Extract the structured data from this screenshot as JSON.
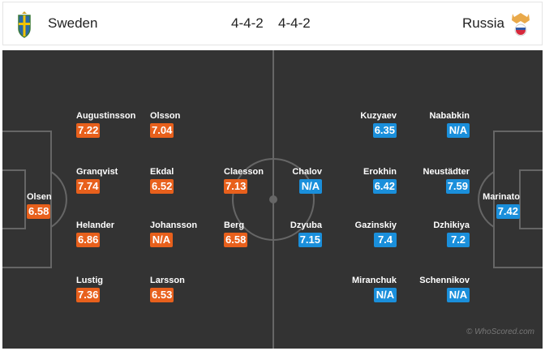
{
  "header": {
    "home_team": "Sweden",
    "away_team": "Russia",
    "home_formation": "4-4-2",
    "away_formation": "4-4-2"
  },
  "colors": {
    "home_badge": "#e8601c",
    "away_badge": "#1a8fdb",
    "pitch": "#333333"
  },
  "home_players": [
    {
      "name": "Olsen",
      "rating": "6.58"
    },
    {
      "name": "Augustinsson",
      "rating": "7.22"
    },
    {
      "name": "Granqvist",
      "rating": "7.74"
    },
    {
      "name": "Helander",
      "rating": "6.86"
    },
    {
      "name": "Lustig",
      "rating": "7.36"
    },
    {
      "name": "Olsson",
      "rating": "7.04"
    },
    {
      "name": "Ekdal",
      "rating": "6.52"
    },
    {
      "name": "Johansson",
      "rating": "N/A"
    },
    {
      "name": "Larsson",
      "rating": "6.53"
    },
    {
      "name": "Claesson",
      "rating": "7.13"
    },
    {
      "name": "Berg",
      "rating": "6.58"
    }
  ],
  "away_players": [
    {
      "name": "Marinato",
      "rating": "7.42"
    },
    {
      "name": "Nababkin",
      "rating": "N/A"
    },
    {
      "name": "Neustädter",
      "rating": "7.59"
    },
    {
      "name": "Dzhikiya",
      "rating": "7.2"
    },
    {
      "name": "Schennikov",
      "rating": "N/A"
    },
    {
      "name": "Kuzyaev",
      "rating": "6.35"
    },
    {
      "name": "Erokhin",
      "rating": "6.42"
    },
    {
      "name": "Gazinskiy",
      "rating": "7.4"
    },
    {
      "name": "Miranchuk",
      "rating": "N/A"
    },
    {
      "name": "Chalov",
      "rating": "N/A"
    },
    {
      "name": "Dzyuba",
      "rating": "7.15"
    }
  ],
  "watermark": "© WhoScored.com"
}
